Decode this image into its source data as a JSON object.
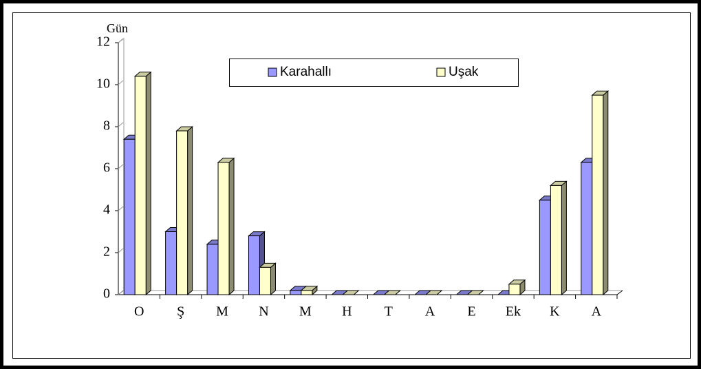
{
  "chart_data": {
    "type": "bar3d",
    "ylabel": "Gün",
    "categories": [
      "O",
      "Ş",
      "M",
      "N",
      "M",
      "H",
      "T",
      "A",
      "E",
      "Ek",
      "K",
      "A"
    ],
    "series": [
      {
        "name": "Karahallı",
        "color": "#9999ff",
        "values": [
          7.4,
          3.0,
          2.4,
          2.8,
          0.2,
          0,
          0,
          0,
          0,
          0,
          4.5,
          6.3
        ]
      },
      {
        "name": "Uşak",
        "color": "#ffffcc",
        "values": [
          10.4,
          7.8,
          6.3,
          1.3,
          0.2,
          0,
          0,
          0,
          0,
          0.5,
          5.2,
          9.5
        ]
      }
    ],
    "ylim": [
      0,
      12
    ],
    "yticks": [
      0,
      2,
      4,
      6,
      8,
      10,
      12
    ],
    "legend": "top"
  }
}
